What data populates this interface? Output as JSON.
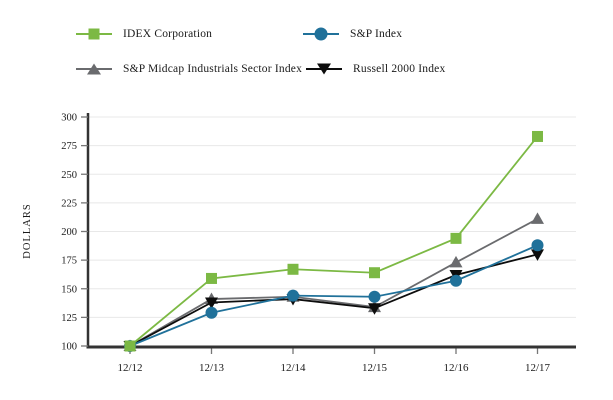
{
  "chart_data": {
    "type": "line",
    "title": "",
    "xlabel": "",
    "ylabel": "DOLLARS",
    "categories": [
      "12/12",
      "12/13",
      "12/14",
      "12/15",
      "12/16",
      "12/17"
    ],
    "series": [
      {
        "name": "IDEX Corporation",
        "marker": "square",
        "color": "#7cb944",
        "values": [
          100,
          159,
          167,
          164,
          194,
          283
        ]
      },
      {
        "name": "S&P Index",
        "marker": "circle",
        "color": "#20719a",
        "values": [
          100,
          129,
          144,
          143,
          157,
          188
        ]
      },
      {
        "name": "S&P Midcap Industrials Sector Index",
        "marker": "triangle-up",
        "color": "#6a6b6e",
        "values": [
          100,
          141,
          143,
          134,
          173,
          211
        ]
      },
      {
        "name": "Russell 2000 Index",
        "marker": "triangle-down",
        "color": "#0d0d0d",
        "values": [
          100,
          138,
          141,
          133,
          162,
          180
        ]
      }
    ],
    "yticks": [
      100,
      125,
      150,
      175,
      200,
      225,
      250,
      275,
      300
    ],
    "ylim": [
      100,
      300
    ],
    "grid": true,
    "legend_position": "top",
    "axis_color": "#333333",
    "gridline_color": "#e8e8e8",
    "tick_color": "#777777",
    "text_color": "#1a1a1a"
  }
}
